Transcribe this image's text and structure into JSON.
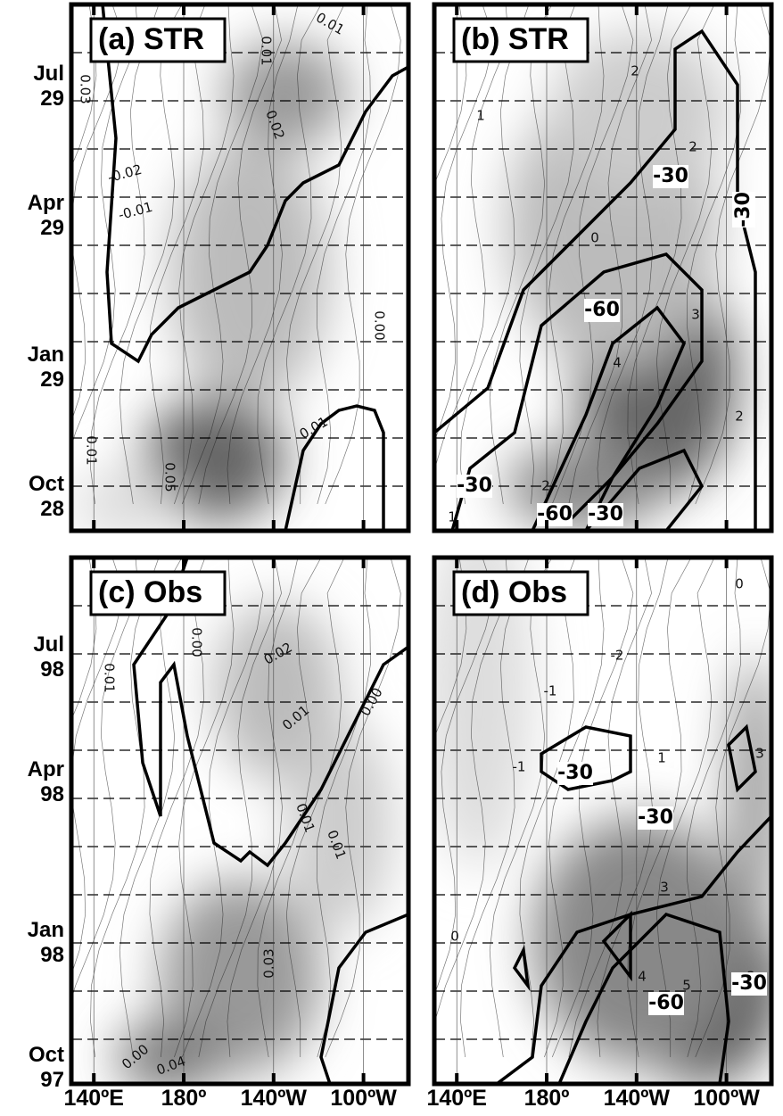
{
  "chart_data": [
    {
      "type": "contour",
      "title": "(a) STR",
      "xlim": [
        130,
        280
      ],
      "xticks": [
        {
          "value": 140,
          "label": "140ºE"
        },
        {
          "value": 180,
          "label": "180º"
        },
        {
          "value": 220,
          "label": "140ºW"
        },
        {
          "value": 260,
          "label": "100ºW"
        }
      ],
      "ytick_labels": [
        [
          "Jul",
          "29"
        ],
        [
          "Apr",
          "29"
        ],
        [
          "Jan",
          "29"
        ],
        [
          "Oct",
          "28"
        ]
      ],
      "contour_labels": [
        "0.01",
        "0.01",
        "0.03",
        "0.02",
        "-0.02",
        "-0.01",
        "0.00",
        "0.01",
        "0.01",
        "0.05"
      ]
    },
    {
      "type": "contour",
      "title": "(b) STR",
      "xlim": [
        130,
        280
      ],
      "xticks": [
        140,
        180,
        220,
        260
      ],
      "contour_labels": [
        "2",
        "1",
        "2",
        "-30",
        "-30",
        "0",
        "-60",
        "3",
        "4",
        "2",
        "-30",
        "2",
        "-60",
        "-30",
        "1"
      ]
    },
    {
      "type": "contour",
      "title": "(c) Obs",
      "xlim": [
        130,
        280
      ],
      "xticks": [
        {
          "value": 140,
          "label": "140ºE"
        },
        {
          "value": 180,
          "label": "180º"
        },
        {
          "value": 220,
          "label": "140ºW"
        },
        {
          "value": 260,
          "label": "100ºW"
        }
      ],
      "ytick_labels": [
        [
          "Jul",
          "98"
        ],
        [
          "Apr",
          "98"
        ],
        [
          "Jan",
          "98"
        ],
        [
          "Oct",
          "97"
        ]
      ],
      "contour_labels": [
        "0.01",
        "0.00",
        "0.02",
        "0.01",
        "0.00",
        "0.01",
        "0.01",
        "0.03",
        "0.00",
        "0.04"
      ]
    },
    {
      "type": "contour",
      "title": "(d) Obs",
      "xlim": [
        130,
        280
      ],
      "xticks": [
        {
          "value": 140,
          "label": "140ºE"
        },
        {
          "value": 180,
          "label": "180º"
        },
        {
          "value": 220,
          "label": "140ºW"
        },
        {
          "value": 260,
          "label": "100ºW"
        }
      ],
      "contour_labels": [
        "0",
        "-2",
        "-1",
        "3",
        "-1",
        "-30",
        "1",
        "-30",
        "3",
        "3",
        "0",
        "4",
        "5",
        "-60",
        "-30"
      ]
    }
  ]
}
